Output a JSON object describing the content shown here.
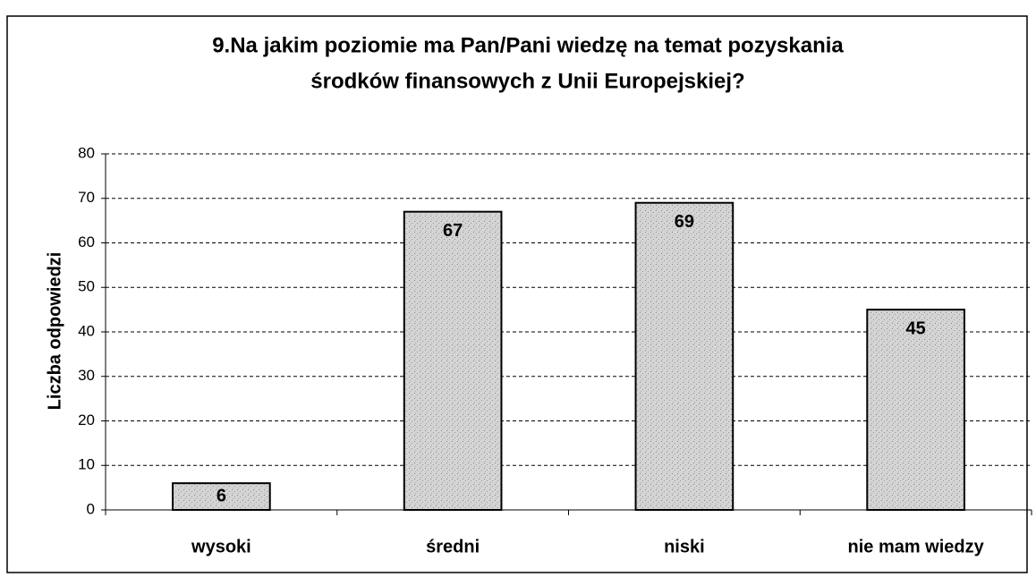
{
  "chart_data": {
    "type": "bar",
    "title": [
      "9.Na jakim poziomie ma Pan/Pani wiedzę na temat pozyskania",
      "środków finansowych z Unii Europejskiej?"
    ],
    "y_label": "Liczba odpowiedzi",
    "categories": [
      "wysoki",
      "średni",
      "niski",
      "nie mam wiedzy"
    ],
    "values": [
      6,
      67,
      69,
      45
    ],
    "color": "#d4d4d4",
    "ylim": [
      0,
      80
    ],
    "yticks": [
      0,
      10,
      20,
      30,
      40,
      50,
      60,
      70,
      80
    ],
    "grid": true
  }
}
